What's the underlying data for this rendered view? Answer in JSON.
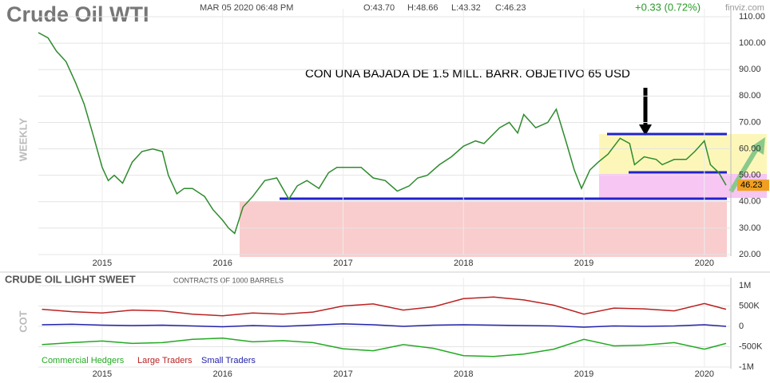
{
  "chart_data": [
    {
      "type": "line",
      "title": "Crude Oil WTI",
      "date": "MAR 05 2020 06:48 PM",
      "stats": [
        "O:43.70",
        "H:48.66",
        "L:43.32",
        "C:46.23"
      ],
      "change": "+0.33 (0.72%)",
      "brand": "finviz.com",
      "period": "WEEKLY",
      "annotation": "CON UNA BAJADA DE 1.5 MILL. BARR. OBJETIVO 65 USD",
      "x": [
        2014.47,
        2014.55,
        2014.62,
        2014.7,
        2014.78,
        2014.85,
        2014.92,
        2015.0,
        2015.05,
        2015.1,
        2015.17,
        2015.25,
        2015.33,
        2015.42,
        2015.5,
        2015.55,
        2015.62,
        2015.68,
        2015.75,
        2015.85,
        2015.92,
        2016.0,
        2016.05,
        2016.1,
        2016.17,
        2016.25,
        2016.35,
        2016.45,
        2016.55,
        2016.62,
        2016.7,
        2016.8,
        2016.88,
        2016.95,
        2017.05,
        2017.15,
        2017.25,
        2017.35,
        2017.45,
        2017.55,
        2017.62,
        2017.7,
        2017.8,
        2017.9,
        2018.0,
        2018.1,
        2018.17,
        2018.3,
        2018.38,
        2018.45,
        2018.5,
        2018.6,
        2018.7,
        2018.77,
        2018.85,
        2018.92,
        2018.98,
        2019.05,
        2019.12,
        2019.2,
        2019.3,
        2019.38,
        2019.42,
        2019.5,
        2019.6,
        2019.65,
        2019.75,
        2019.85,
        2019.92,
        2020.0,
        2020.05,
        2020.12,
        2020.18
      ],
      "values": [
        104,
        102,
        97,
        93,
        85,
        77,
        66,
        53,
        48,
        50,
        47,
        55,
        59,
        60,
        59,
        50,
        43,
        45,
        45,
        42,
        37,
        33,
        30,
        28,
        38,
        42,
        48,
        49,
        41,
        46,
        48,
        45,
        51,
        53,
        53,
        53,
        49,
        48,
        44,
        46,
        49,
        50,
        54,
        57,
        61,
        63,
        62,
        68,
        70,
        66,
        73,
        68,
        70,
        75,
        63,
        52,
        45,
        52,
        55,
        58,
        64,
        62,
        54,
        57,
        56,
        54,
        56,
        56,
        59,
        63,
        54,
        51,
        46.23
      ],
      "color": "#2e8b2e",
      "xlim": [
        2014.47,
        2020.22
      ],
      "xticks": [
        2015,
        2016,
        2017,
        2018,
        2019,
        2020
      ],
      "ylim": [
        20,
        110
      ],
      "yticks": [
        {
          "value": 20,
          "label": "20.00"
        },
        {
          "value": 30,
          "label": "30.00"
        },
        {
          "value": 40,
          "label": "40.00"
        },
        {
          "value": 50,
          "label": "50.00"
        },
        {
          "value": 60,
          "label": "60.00"
        },
        {
          "value": 70,
          "label": "70.00"
        },
        {
          "value": 80,
          "label": "80.00"
        },
        {
          "value": 90,
          "label": "90.00"
        },
        {
          "value": 100,
          "label": "100.00"
        },
        {
          "value": 110,
          "label": "110.00"
        }
      ],
      "grid": true
    },
    {
      "type": "line",
      "title": "CRUDE OIL LIGHT SWEET",
      "subtitle": "CONTRACTS OF 1000 BARRELS",
      "ylabel": "COT",
      "x": [
        2014.5,
        2014.75,
        2015.0,
        2015.25,
        2015.5,
        2015.75,
        2016.0,
        2016.25,
        2016.5,
        2016.75,
        2017.0,
        2017.25,
        2017.5,
        2017.75,
        2018.0,
        2018.25,
        2018.5,
        2018.75,
        2019.0,
        2019.25,
        2019.5,
        2019.75,
        2020.0,
        2020.18
      ],
      "series": [
        {
          "name": "Commercial Hedgers",
          "color": "#22aa22",
          "values": [
            -450000,
            -400000,
            -360000,
            -420000,
            -400000,
            -320000,
            -290000,
            -380000,
            -350000,
            -400000,
            -550000,
            -600000,
            -450000,
            -540000,
            -720000,
            -740000,
            -680000,
            -560000,
            -320000,
            -480000,
            -460000,
            -400000,
            -560000,
            -420000
          ]
        },
        {
          "name": "Large Traders",
          "color": "#bb2222",
          "values": [
            420000,
            360000,
            330000,
            400000,
            380000,
            300000,
            260000,
            330000,
            300000,
            350000,
            500000,
            550000,
            400000,
            480000,
            680000,
            720000,
            650000,
            520000,
            300000,
            450000,
            430000,
            380000,
            560000,
            420000
          ]
        },
        {
          "name": "Small Traders",
          "color": "#2222aa",
          "values": [
            40000,
            50000,
            30000,
            20000,
            30000,
            10000,
            -10000,
            20000,
            0,
            30000,
            60000,
            40000,
            0,
            30000,
            40000,
            30000,
            20000,
            10000,
            -20000,
            10000,
            0,
            10000,
            40000,
            0
          ]
        }
      ],
      "xlim": [
        2014.47,
        2020.22
      ],
      "xticks": [
        2015,
        2016,
        2017,
        2018,
        2019,
        2020
      ],
      "ylim": [
        -1000000,
        1000000
      ],
      "yticks": [
        {
          "value": -1000000,
          "label": "-1M"
        },
        {
          "value": -500000,
          "label": "-500K"
        },
        0,
        {
          "value": 500000,
          "label": "500K"
        },
        {
          "value": 1000000,
          "label": "1M"
        }
      ],
      "grid": true
    }
  ]
}
